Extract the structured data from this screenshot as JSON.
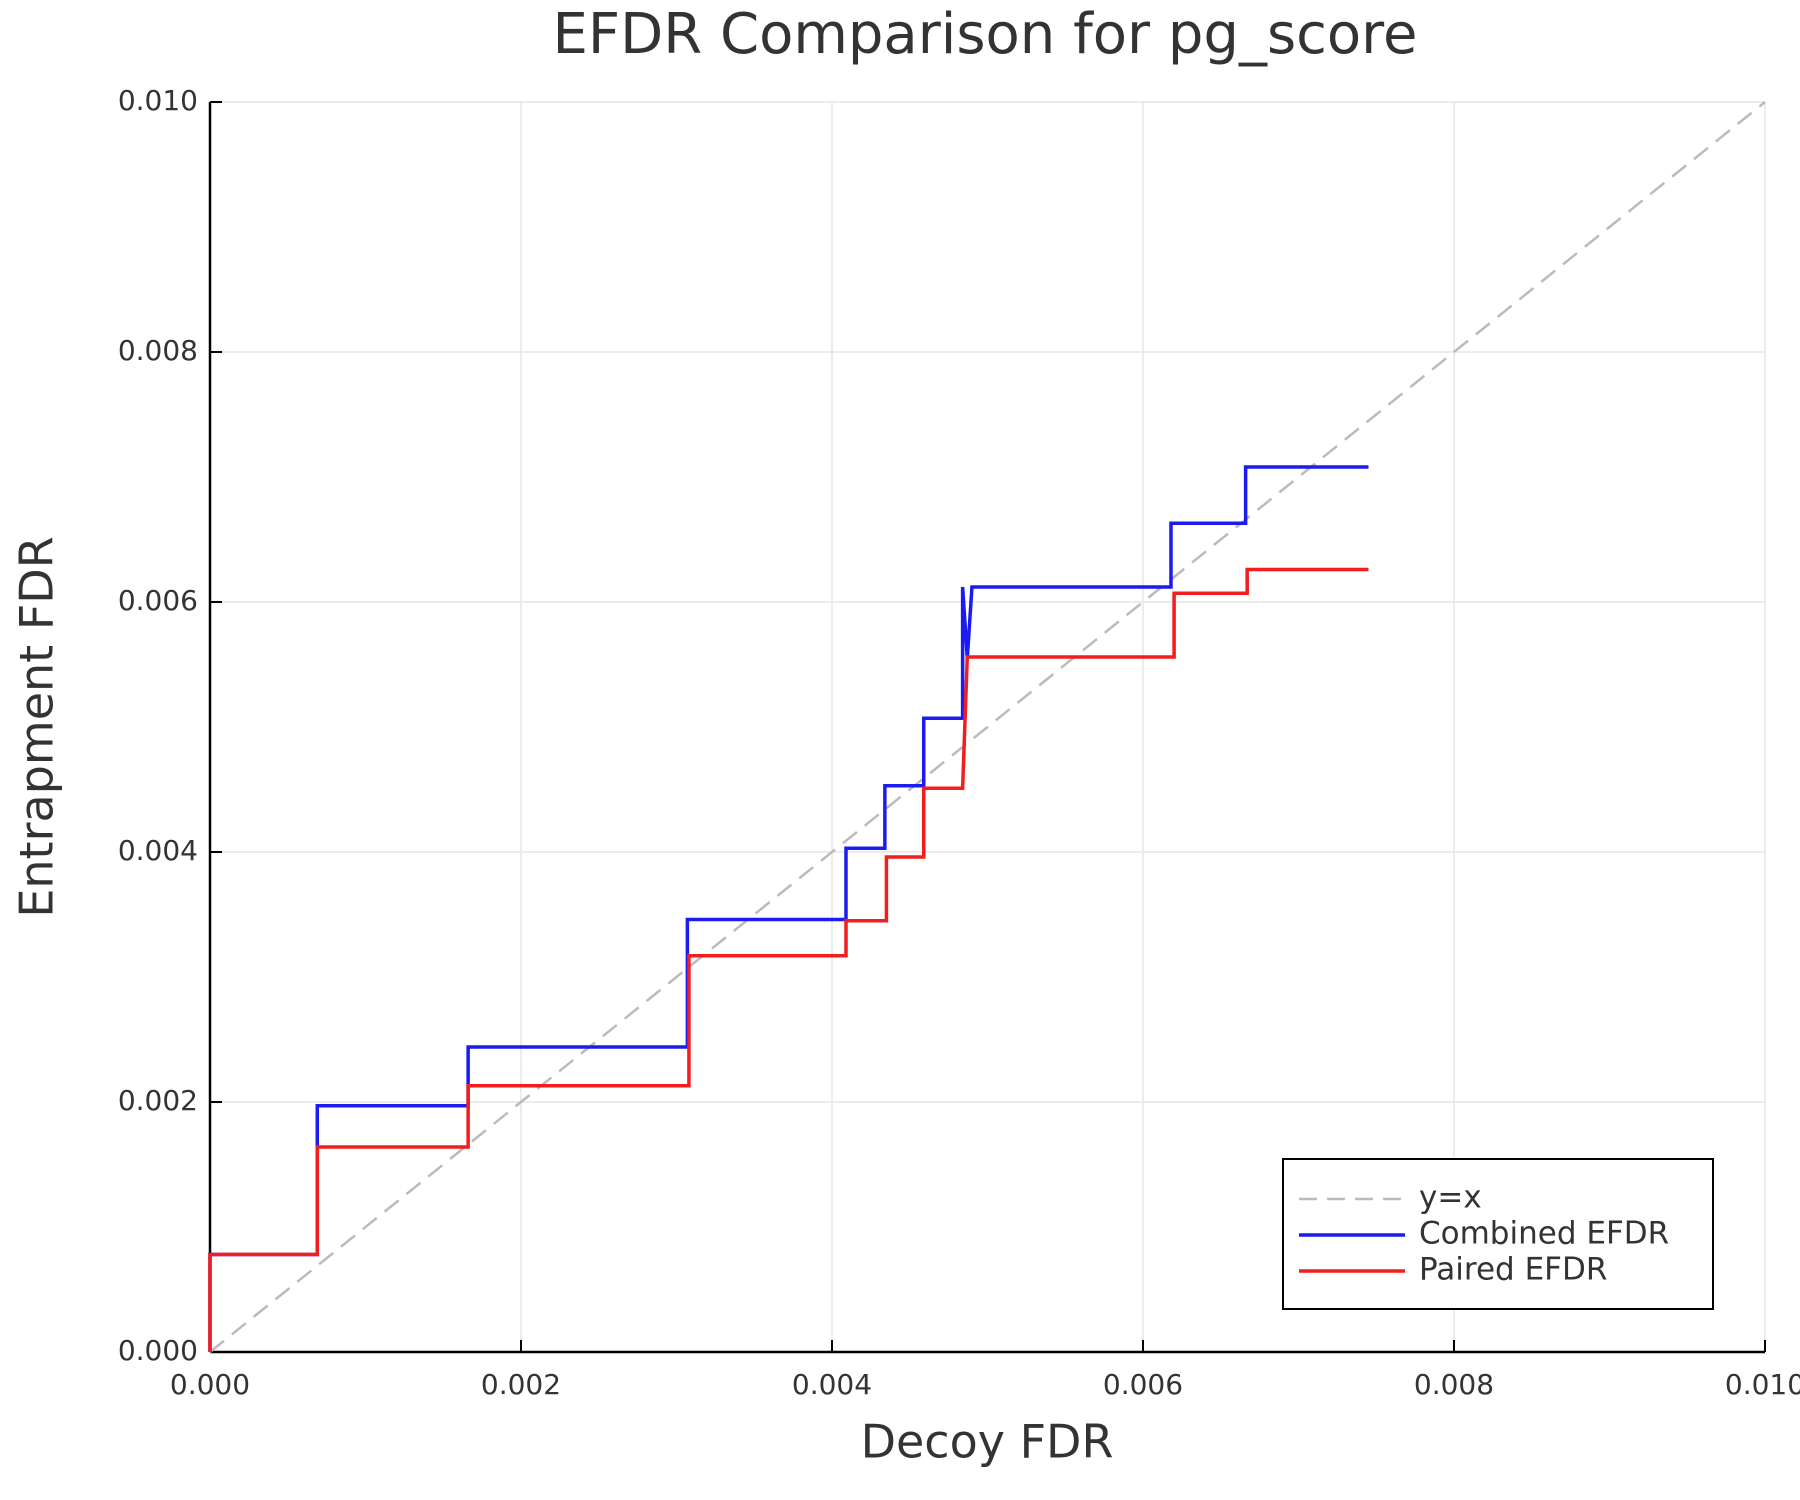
{
  "chart_data": {
    "type": "line",
    "title": "EFDR Comparison for pg_score",
    "x_label": "Decoy FDR",
    "y_label": "Entrapment FDR",
    "xlim": [
      0,
      0.01
    ],
    "ylim": [
      0,
      0.01
    ],
    "xticks": [
      {
        "value": 0,
        "label": "0.000"
      },
      {
        "value": 0.002,
        "label": "0.002"
      },
      {
        "value": 0.004,
        "label": "0.004"
      },
      {
        "value": 0.006,
        "label": "0.006"
      },
      {
        "value": 0.008,
        "label": "0.008"
      },
      {
        "value": 0.01,
        "label": "0.010"
      }
    ],
    "yticks": [
      {
        "value": 0,
        "label": "0.000"
      },
      {
        "value": 0.002,
        "label": "0.002"
      },
      {
        "value": 0.004,
        "label": "0.004"
      },
      {
        "value": 0.006,
        "label": "0.006"
      },
      {
        "value": 0.008,
        "label": "0.008"
      },
      {
        "value": 0.01,
        "label": "0.010"
      }
    ],
    "grid": true,
    "legend": "lower right",
    "series": [
      {
        "name": "y=x",
        "color": "#bbbbbb",
        "dash": true,
        "x": [
          0,
          0.01
        ],
        "values": [
          0,
          0.01
        ]
      },
      {
        "name": "Combined EFDR",
        "color": "#1c1cf0",
        "dash": false,
        "x": [
          0,
          0,
          0.00069,
          0.00069,
          0.00166,
          0.00166,
          0.00307,
          0.00307,
          0.00409,
          0.00409,
          0.00434,
          0.00434,
          0.00459,
          0.00459,
          0.00484,
          0.00484,
          0.00487,
          0.0049,
          0.00618,
          0.00618,
          0.00666,
          0.00666,
          0.00745
        ],
        "values": [
          0,
          0.00078,
          0.00078,
          0.00197,
          0.00197,
          0.00244,
          0.00244,
          0.00346,
          0.00346,
          0.00403,
          0.00403,
          0.00453,
          0.00453,
          0.00507,
          0.00507,
          0.00612,
          0.00555,
          0.00612,
          0.00612,
          0.00663,
          0.00663,
          0.00708,
          0.00708
        ]
      },
      {
        "name": "Paired EFDR",
        "color": "#f21d1d",
        "dash": false,
        "x": [
          0,
          0,
          0.00069,
          0.00069,
          0.00166,
          0.00166,
          0.00308,
          0.00308,
          0.00409,
          0.00409,
          0.00435,
          0.00435,
          0.00459,
          0.00459,
          0.00484,
          0.00487,
          0.0062,
          0.0062,
          0.00667,
          0.00667,
          0.00745
        ],
        "values": [
          0,
          0.00078,
          0.00078,
          0.00164,
          0.00164,
          0.00213,
          0.00213,
          0.00317,
          0.00317,
          0.00345,
          0.00345,
          0.00396,
          0.00396,
          0.00451,
          0.00451,
          0.00556,
          0.00556,
          0.00607,
          0.00607,
          0.00626,
          0.00626
        ]
      }
    ]
  }
}
